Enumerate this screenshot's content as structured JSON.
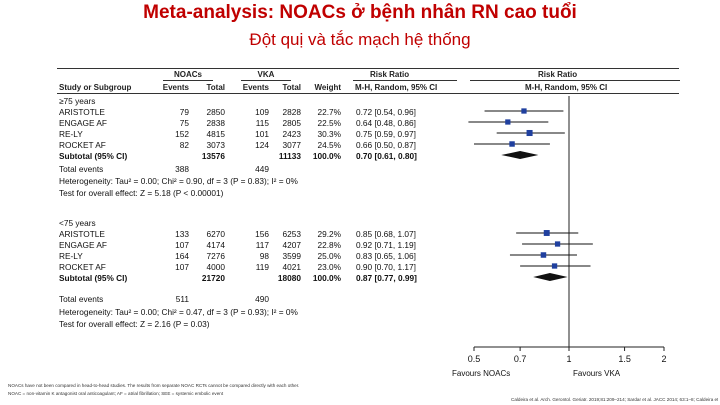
{
  "slide": {
    "title": "Meta-analysis: NOACs ở bệnh nhân RN cao tuổi",
    "subtitle": "Đột quị và tắc mạch hệ thống"
  },
  "table": {
    "header": {
      "group1": "NOACs",
      "group2": "VKA",
      "effect": "Risk Ratio",
      "plot_title": "Risk Ratio",
      "col_study": "Study or Subgroup",
      "col_events1": "Events",
      "col_total1": "Total",
      "col_events2": "Events",
      "col_total2": "Total",
      "col_weight": "Weight",
      "col_method": "M-H, Random, 95% CI",
      "plot_method": "M-H, Random, 95% CI"
    },
    "subgroups": [
      {
        "label": "≥75 years",
        "rows": [
          {
            "study": "ARISTOTLE",
            "e1": "79",
            "t1": "2850",
            "e2": "109",
            "t2": "2828",
            "w": "22.7%",
            "ci": "0.72 [0.54, 0.96]"
          },
          {
            "study": "ENGAGE AF",
            "e1": "75",
            "t1": "2838",
            "e2": "115",
            "t2": "2805",
            "w": "22.5%",
            "ci": "0.64 [0.48, 0.86]"
          },
          {
            "study": "RE-LY",
            "e1": "152",
            "t1": "4815",
            "e2": "101",
            "t2": "2423",
            "w": "30.3%",
            "ci": "0.75 [0.59, 0.97]"
          },
          {
            "study": "ROCKET AF",
            "e1": "82",
            "t1": "3073",
            "e2": "124",
            "t2": "3077",
            "w": "24.5%",
            "ci": "0.66 [0.50, 0.87]"
          }
        ],
        "subtotal": {
          "label": "Subtotal (95% CI)",
          "t1": "13576",
          "t2": "11133",
          "w": "100.0%",
          "ci": "0.70 [0.61, 0.80]"
        },
        "total_events": {
          "label": "Total events",
          "e1": "388",
          "e2": "449"
        },
        "heterogeneity": "Heterogeneity: Tau² = 0.00; Chi² = 0.90, df = 3 (P = 0.83); I² = 0%",
        "overall": "Test for overall effect: Z = 5.18 (P < 0.00001)"
      },
      {
        "label": "<75 years",
        "rows": [
          {
            "study": "ARISTOTLE",
            "e1": "133",
            "t1": "6270",
            "e2": "156",
            "t2": "6253",
            "w": "29.2%",
            "ci": "0.85 [0.68, 1.07]"
          },
          {
            "study": "ENGAGE AF",
            "e1": "107",
            "t1": "4174",
            "e2": "117",
            "t2": "4207",
            "w": "22.8%",
            "ci": "0.92 [0.71, 1.19]"
          },
          {
            "study": "RE-LY",
            "e1": "164",
            "t1": "7276",
            "e2": "98",
            "t2": "3599",
            "w": "25.0%",
            "ci": "0.83 [0.65, 1.06]"
          },
          {
            "study": "ROCKET AF",
            "e1": "107",
            "t1": "4000",
            "e2": "119",
            "t2": "4021",
            "w": "23.0%",
            "ci": "0.90 [0.70, 1.17]"
          }
        ],
        "subtotal": {
          "label": "Subtotal (95% CI)",
          "t1": "21720",
          "t2": "18080",
          "w": "100.0%",
          "ci": "0.87 [0.77, 0.99]"
        },
        "total_events": {
          "label": "Total events",
          "e1": "511",
          "e2": "490"
        },
        "heterogeneity": "Heterogeneity: Tau² = 0.00; Chi² = 0.47, df = 3 (P = 0.93); I² = 0%",
        "overall": "Test for overall effect: Z = 2.16 (P = 0.03)"
      }
    ],
    "favours_left": "Favours NOACs",
    "favours_right": "Favours VKA"
  },
  "chart_data": {
    "type": "forest",
    "axis": {
      "ticks": [
        0.5,
        0.7,
        1,
        1.5,
        2
      ],
      "tick_labels": [
        "0.5",
        "0.7",
        "1",
        "1.5",
        "2"
      ],
      "null_value": 1,
      "xlim": [
        0.5,
        2
      ],
      "scale": "log"
    },
    "series": [
      {
        "subgroup": "≥75 years",
        "studies": [
          {
            "name": "ARISTOTLE",
            "rr": 0.72,
            "lo": 0.54,
            "hi": 0.96,
            "weight": 22.7
          },
          {
            "name": "ENGAGE AF",
            "rr": 0.64,
            "lo": 0.48,
            "hi": 0.86,
            "weight": 22.5
          },
          {
            "name": "RE-LY",
            "rr": 0.75,
            "lo": 0.59,
            "hi": 0.97,
            "weight": 30.3
          },
          {
            "name": "ROCKET AF",
            "rr": 0.66,
            "lo": 0.5,
            "hi": 0.87,
            "weight": 24.5
          }
        ],
        "pooled": {
          "rr": 0.7,
          "lo": 0.61,
          "hi": 0.8
        }
      },
      {
        "subgroup": "<75 years",
        "studies": [
          {
            "name": "ARISTOTLE",
            "rr": 0.85,
            "lo": 0.68,
            "hi": 1.07,
            "weight": 29.2
          },
          {
            "name": "ENGAGE AF",
            "rr": 0.92,
            "lo": 0.71,
            "hi": 1.19,
            "weight": 22.8
          },
          {
            "name": "RE-LY",
            "rr": 0.83,
            "lo": 0.65,
            "hi": 1.06,
            "weight": 25.0
          },
          {
            "name": "ROCKET AF",
            "rr": 0.9,
            "lo": 0.7,
            "hi": 1.17,
            "weight": 23.0
          }
        ],
        "pooled": {
          "rr": 0.87,
          "lo": 0.77,
          "hi": 0.99
        }
      }
    ]
  },
  "footnotes": {
    "line1": "NOACs have not been compared in head-to-head studies. The results from separate NOAC RCTs cannot be compared directly with each other.",
    "line2": "NOAC = non-vitamin K antagonist oral anticoagulant; AF = atrial fibrillation; SEE = systemic embolic event",
    "citation": "Caldeira et al. Arch. Gerontol. Geriatr. 2019;81:209–214; Sardar et al. JACC 2014; 63:1–8; Caldeira et al. Arch. Gerontol. Geriatr."
  },
  "colors": {
    "title": "#c00000",
    "marker": "#1f3f9e",
    "diamond": "#111111"
  }
}
